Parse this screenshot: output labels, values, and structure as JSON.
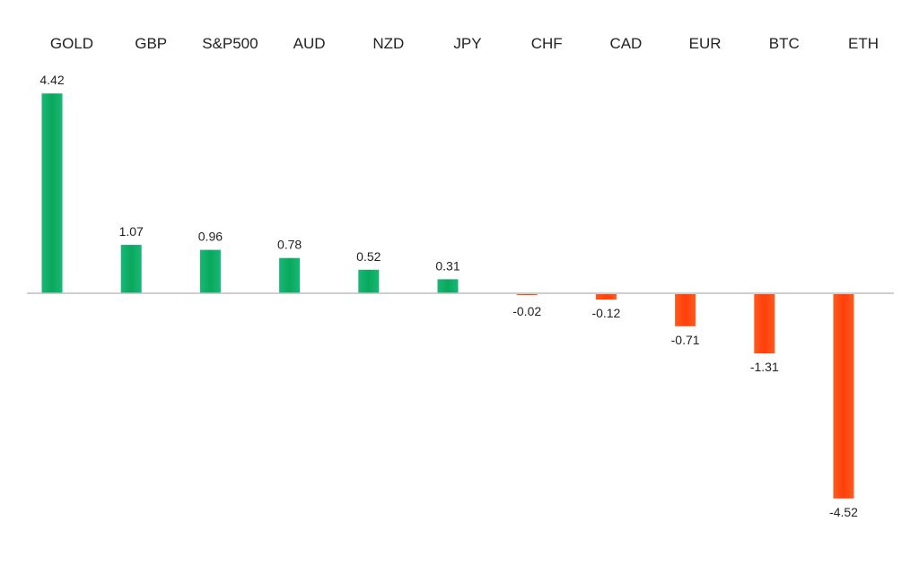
{
  "chart_data": {
    "type": "bar",
    "title": "",
    "xlabel": "",
    "ylabel": "",
    "categories": [
      "GOLD",
      "GBP",
      "S&P500",
      "AUD",
      "NZD",
      "JPY",
      "CHF",
      "CAD",
      "EUR",
      "BTC",
      "ETH"
    ],
    "values": [
      4.42,
      1.07,
      0.96,
      0.78,
      0.52,
      0.31,
      -0.02,
      -0.12,
      -0.71,
      -1.31,
      -4.52
    ],
    "value_labels": [
      "4.42",
      "1.07",
      "0.96",
      "0.78",
      "0.52",
      "0.31",
      "-0.02",
      "-0.12",
      "-0.71",
      "-1.31",
      "-4.52"
    ],
    "ylim": [
      -4.52,
      4.42
    ],
    "grid": false,
    "legend": "none",
    "category_labels_position": "top",
    "colors": {
      "positive": "#0fb067",
      "negative": "#ff4a12",
      "axis": "#bfbfbf",
      "text": "#222222"
    }
  }
}
